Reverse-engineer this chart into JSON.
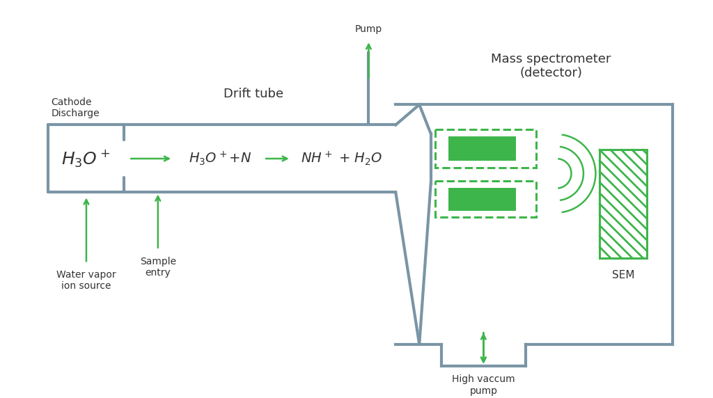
{
  "bg_color": "#ffffff",
  "gray_color": "#7a95a5",
  "green_color": "#3db54a",
  "text_dark": "#333333",
  "labels": {
    "cathode_discharge": "Cathode\nDischarge",
    "water_vapor": "Water vapor\nion source",
    "drift_tube": "Drift tube",
    "pump": "Pump",
    "mass_spec": "Mass spectrometer\n(detector)",
    "sample_entry": "Sample\nentry",
    "high_vaccum": "High vaccum\npump",
    "sem": "SEM",
    "h3o_box": "$\\mathregular{H_3O^+}$",
    "reaction1": "$\\mathregular{H_3O^+}$$\\mathregular{+N}$",
    "arrow1": "",
    "reaction2": "$\\mathregular{NH^+}$ $\\mathregular{+}$ $\\mathregular{H_2O}$"
  }
}
